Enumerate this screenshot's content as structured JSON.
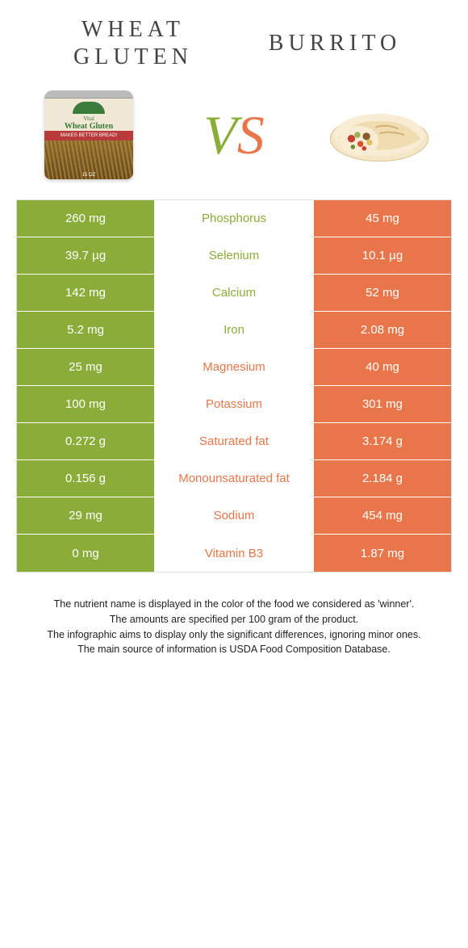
{
  "colors": {
    "green": "#8aad3a",
    "orange": "#e8764a"
  },
  "titles": {
    "left_line1": "Wheat",
    "left_line2": "gluten",
    "right": "Burrito",
    "vs_v": "V",
    "vs_s": "S"
  },
  "can": {
    "vital": "Vital",
    "name": "Wheat Gluten",
    "band": "MAKES BETTER BREAD!",
    "oz": "15 OZ"
  },
  "rows": [
    {
      "left": "260 mg",
      "mid": "Phosphorus",
      "right": "45 mg",
      "winner": "left"
    },
    {
      "left": "39.7 µg",
      "mid": "Selenium",
      "right": "10.1 µg",
      "winner": "left"
    },
    {
      "left": "142 mg",
      "mid": "Calcium",
      "right": "52 mg",
      "winner": "left"
    },
    {
      "left": "5.2 mg",
      "mid": "Iron",
      "right": "2.08 mg",
      "winner": "left"
    },
    {
      "left": "25 mg",
      "mid": "Magnesium",
      "right": "40 mg",
      "winner": "right"
    },
    {
      "left": "100 mg",
      "mid": "Potassium",
      "right": "301 mg",
      "winner": "right"
    },
    {
      "left": "0.272 g",
      "mid": "Saturated fat",
      "right": "3.174 g",
      "winner": "right"
    },
    {
      "left": "0.156 g",
      "mid": "Monounsaturated fat",
      "right": "2.184 g",
      "winner": "right"
    },
    {
      "left": "29 mg",
      "mid": "Sodium",
      "right": "454 mg",
      "winner": "right"
    },
    {
      "left": "0 mg",
      "mid": "Vitamin B3",
      "right": "1.87 mg",
      "winner": "right"
    }
  ],
  "footer": {
    "l1": "The nutrient name is displayed in the color of the food we considered as 'winner'.",
    "l2": "The amounts are specified per 100 gram of the product.",
    "l3": "The infographic aims to display only the significant differences, ignoring minor ones.",
    "l4": "The main source of information is USDA Food Composition Database."
  }
}
